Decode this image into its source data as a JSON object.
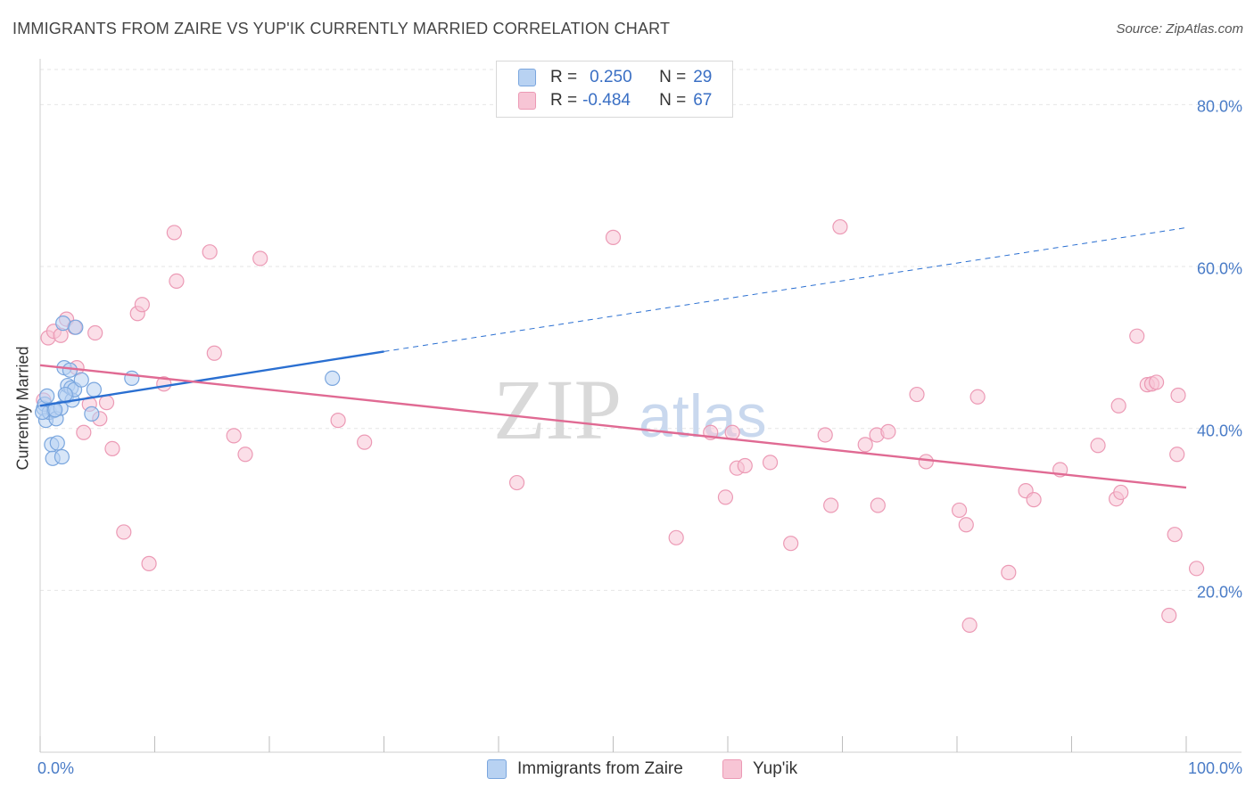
{
  "header": {
    "title": "IMMIGRANTS FROM ZAIRE VS YUP'IK CURRENTLY MARRIED CORRELATION CHART",
    "source": "Source: ZipAtlas.com"
  },
  "colors": {
    "blue_fill": "#b8d2f2",
    "blue_stroke": "#7aa6de",
    "blue_line": "#2a6fd1",
    "pink_fill": "#f7c5d5",
    "pink_stroke": "#ec9ab5",
    "pink_line": "#e06a93",
    "axis_text": "#4a7cc7",
    "grid": "#e6e6e6"
  },
  "watermark": {
    "zip": "ZIP",
    "atlas": "atlas"
  },
  "legend": {
    "rows": [
      {
        "r_label": "R =",
        "r_value": "0.250",
        "n_label": "N =",
        "n_value": "29"
      },
      {
        "r_label": "R =",
        "r_value": "-0.484",
        "n_label": "N =",
        "n_value": "67"
      }
    ]
  },
  "chart_data": {
    "type": "scatter",
    "title": "IMMIGRANTS FROM ZAIRE VS YUP'IK CURRENTLY MARRIED CORRELATION CHART",
    "xlabel": "",
    "ylabel": "Currently Married",
    "xlim": [
      0,
      100
    ],
    "ylim": [
      0,
      85
    ],
    "x_tick_labels": [
      "0.0%",
      "100.0%"
    ],
    "y_ticks": [
      {
        "value": 20,
        "label": "20.0%"
      },
      {
        "value": 40,
        "label": "40.0%"
      },
      {
        "value": 60,
        "label": "60.0%"
      },
      {
        "value": 80,
        "label": "80.0%"
      }
    ],
    "grid": true,
    "series": [
      {
        "name": "Immigrants from Zaire",
        "color": "blue",
        "points": [
          [
            0.3,
            42.5
          ],
          [
            0.4,
            43
          ],
          [
            0.5,
            41
          ],
          [
            0.6,
            44
          ],
          [
            0.8,
            42
          ],
          [
            1,
            38
          ],
          [
            1.1,
            36.3
          ],
          [
            1.2,
            42.2
          ],
          [
            1.4,
            41.2
          ],
          [
            1.5,
            38.2
          ],
          [
            1.8,
            42.5
          ],
          [
            1.9,
            36.5
          ],
          [
            2,
            53
          ],
          [
            2.1,
            47.5
          ],
          [
            2.3,
            44
          ],
          [
            2.4,
            45.3
          ],
          [
            2.6,
            47.2
          ],
          [
            2.7,
            45
          ],
          [
            2.8,
            43.5
          ],
          [
            3,
            44.8
          ],
          [
            3.1,
            52.5
          ],
          [
            3.6,
            46
          ],
          [
            4.5,
            41.8
          ],
          [
            4.7,
            44.8
          ],
          [
            8,
            46.2
          ],
          [
            0.2,
            42
          ],
          [
            1.3,
            42.3
          ],
          [
            2.2,
            44.2
          ],
          [
            25.5,
            46.2
          ]
        ],
        "trend": {
          "x0": 0,
          "y0": 42.8,
          "x1": 30,
          "y1": 49.5,
          "dash_x1": 100,
          "dash_y1": 64.8
        }
      },
      {
        "name": "Yup'ik",
        "color": "pink",
        "points": [
          [
            0.3,
            43.5
          ],
          [
            0.7,
            51.2
          ],
          [
            1.2,
            52
          ],
          [
            1.8,
            51.5
          ],
          [
            2.3,
            53.5
          ],
          [
            3,
            52.5
          ],
          [
            3.2,
            47.5
          ],
          [
            3.8,
            39.5
          ],
          [
            4.3,
            43
          ],
          [
            4.8,
            51.8
          ],
          [
            5.2,
            41.2
          ],
          [
            5.8,
            43.2
          ],
          [
            6.3,
            37.5
          ],
          [
            7.3,
            27.2
          ],
          [
            8.5,
            54.2
          ],
          [
            8.9,
            55.3
          ],
          [
            9.5,
            23.3
          ],
          [
            10.8,
            45.5
          ],
          [
            11.7,
            64.2
          ],
          [
            11.9,
            58.2
          ],
          [
            14.8,
            61.8
          ],
          [
            15.2,
            49.3
          ],
          [
            16.9,
            39.1
          ],
          [
            17.9,
            36.8
          ],
          [
            19.2,
            61
          ],
          [
            26,
            41
          ],
          [
            28.3,
            38.3
          ],
          [
            41.6,
            33.3
          ],
          [
            50,
            63.6
          ],
          [
            55.5,
            26.5
          ],
          [
            58.5,
            39.5
          ],
          [
            59.8,
            31.5
          ],
          [
            60.4,
            39.5
          ],
          [
            60.8,
            35.1
          ],
          [
            61.5,
            35.4
          ],
          [
            63.7,
            35.8
          ],
          [
            65.5,
            25.8
          ],
          [
            68.5,
            39.2
          ],
          [
            69,
            30.5
          ],
          [
            69.8,
            64.9
          ],
          [
            72,
            38
          ],
          [
            73,
            39.2
          ],
          [
            73.1,
            30.5
          ],
          [
            74,
            39.6
          ],
          [
            76.5,
            44.2
          ],
          [
            77.3,
            35.9
          ],
          [
            80.2,
            29.9
          ],
          [
            80.8,
            28.1
          ],
          [
            81.1,
            15.7
          ],
          [
            81.8,
            43.9
          ],
          [
            84.5,
            22.2
          ],
          [
            86,
            32.3
          ],
          [
            86.7,
            31.2
          ],
          [
            89,
            34.9
          ],
          [
            92.3,
            37.9
          ],
          [
            93.9,
            31.3
          ],
          [
            94.1,
            42.8
          ],
          [
            94.3,
            32.1
          ],
          [
            95.7,
            51.4
          ],
          [
            96.6,
            45.4
          ],
          [
            97,
            45.5
          ],
          [
            97.4,
            45.7
          ],
          [
            98.5,
            16.9
          ],
          [
            99,
            26.9
          ],
          [
            99.2,
            36.8
          ],
          [
            99.3,
            44.1
          ],
          [
            100.9,
            22.7
          ]
        ],
        "trend": {
          "x0": 0,
          "y0": 47.8,
          "x1": 100,
          "y1": 32.7
        }
      }
    ]
  },
  "bottom_legend": [
    {
      "label": "Immigrants from Zaire",
      "color": "blue"
    },
    {
      "label": "Yup'ik",
      "color": "pink"
    }
  ]
}
